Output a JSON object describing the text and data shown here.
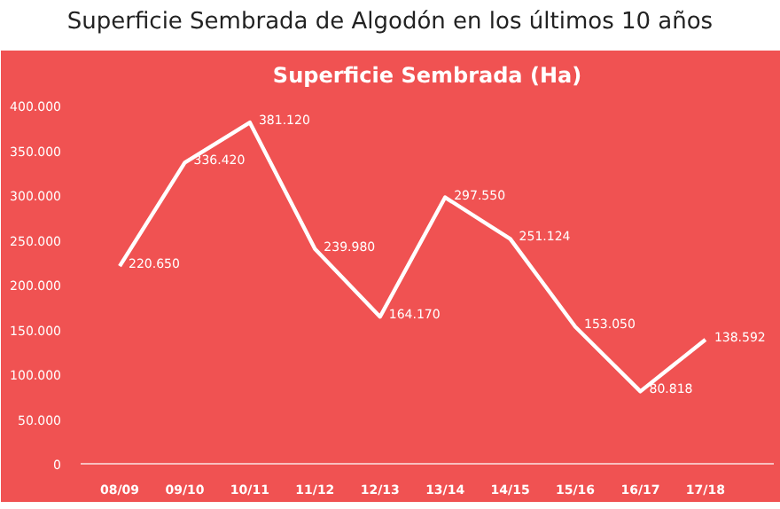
{
  "chart_data": {
    "type": "line",
    "title": "Superficie Sembrada (Ha)",
    "subtitle": "Superficie Sembrada de Algodón en los últimos 10 años",
    "categories": [
      "08/09",
      "09/10",
      "10/11",
      "11/12",
      "12/13",
      "13/14",
      "14/15",
      "15/16",
      "16/17",
      "17/18"
    ],
    "series": [
      {
        "color": "#ffffff",
        "values": [
          220650,
          336420,
          381120,
          239980,
          164170,
          297550,
          251124,
          153050,
          80818,
          138592
        ],
        "value_labels": [
          "220.650",
          "336.420",
          "381.120",
          "239.980",
          "164.170",
          "297.550",
          "251.124",
          "153.050",
          "80.818",
          "138.592"
        ]
      }
    ],
    "ylim": [
      0,
      410000
    ],
    "yticks": [
      {
        "value": 0,
        "label": "0"
      },
      {
        "value": 50000,
        "label": "50.000"
      },
      {
        "value": 100000,
        "label": "100.000"
      },
      {
        "value": 150000,
        "label": "150.000"
      },
      {
        "value": 200000,
        "label": "200.000"
      },
      {
        "value": 250000,
        "label": "250.000"
      },
      {
        "value": 300000,
        "label": "300.000"
      },
      {
        "value": 350000,
        "label": "350.000"
      },
      {
        "value": 400000,
        "label": "400.000"
      }
    ],
    "grid": false,
    "marker": "none",
    "line_style": "solid"
  }
}
